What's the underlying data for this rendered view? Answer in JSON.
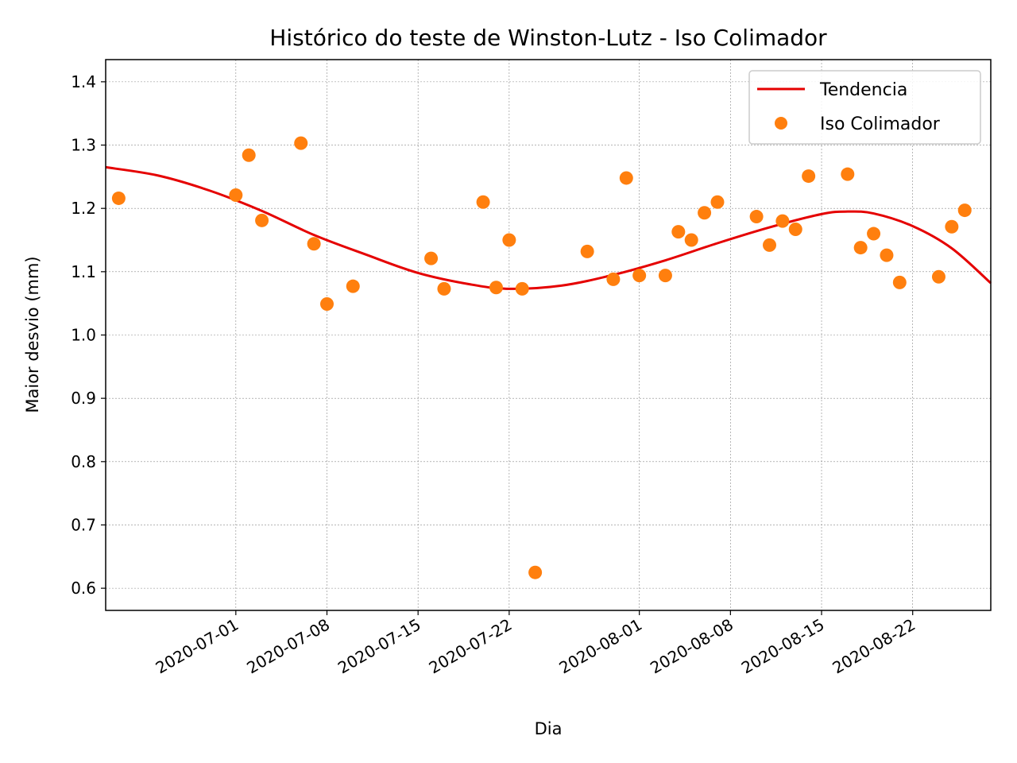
{
  "chart_data": {
    "type": "scatter",
    "title": "Histórico do teste de Winston-Lutz - Iso Colimador",
    "xlabel": "Dia",
    "ylabel": "Maior desvio (mm)",
    "x_axis_type": "date",
    "xlim": [
      "2020-06-21",
      "2020-08-28"
    ],
    "ylim": [
      0.565,
      1.435
    ],
    "x_ticks": [
      "2020-07-01",
      "2020-07-08",
      "2020-07-15",
      "2020-07-22",
      "2020-08-01",
      "2020-08-08",
      "2020-08-15",
      "2020-08-22"
    ],
    "y_ticks": [
      0.6,
      0.7,
      0.8,
      0.9,
      1.0,
      1.1,
      1.2,
      1.3,
      1.4
    ],
    "y_tick_labels": [
      "0.6",
      "0.7",
      "0.8",
      "0.9",
      "1.0",
      "1.1",
      "1.2",
      "1.3",
      "1.4"
    ],
    "grid": true,
    "legend_position": "top-right",
    "series": [
      {
        "name": "Tendencia",
        "kind": "line",
        "color": "#e50000",
        "x": [
          "2020-06-21",
          "2020-06-25",
          "2020-06-29",
          "2020-07-03",
          "2020-07-07",
          "2020-07-11",
          "2020-07-15",
          "2020-07-19",
          "2020-07-22",
          "2020-07-26",
          "2020-07-30",
          "2020-08-03",
          "2020-08-07",
          "2020-08-11",
          "2020-08-15",
          "2020-08-17",
          "2020-08-19",
          "2020-08-22",
          "2020-08-25",
          "2020-08-28"
        ],
        "y": [
          1.265,
          1.252,
          1.228,
          1.196,
          1.158,
          1.127,
          1.098,
          1.08,
          1.073,
          1.078,
          1.095,
          1.118,
          1.145,
          1.17,
          1.191,
          1.195,
          1.192,
          1.172,
          1.137,
          1.082
        ]
      },
      {
        "name": "Iso Colimador",
        "kind": "scatter",
        "color": "#ff7f0e",
        "x": [
          "2020-06-22",
          "2020-07-01",
          "2020-07-02",
          "2020-07-03",
          "2020-07-06",
          "2020-07-07",
          "2020-07-08",
          "2020-07-10",
          "2020-07-16",
          "2020-07-17",
          "2020-07-20",
          "2020-07-21",
          "2020-07-22",
          "2020-07-23",
          "2020-07-24",
          "2020-07-28",
          "2020-07-30",
          "2020-07-31",
          "2020-08-01",
          "2020-08-03",
          "2020-08-04",
          "2020-08-05",
          "2020-08-06",
          "2020-08-07",
          "2020-08-10",
          "2020-08-11",
          "2020-08-12",
          "2020-08-13",
          "2020-08-14",
          "2020-08-17",
          "2020-08-18",
          "2020-08-19",
          "2020-08-20",
          "2020-08-21",
          "2020-08-24",
          "2020-08-25",
          "2020-08-26"
        ],
        "y": [
          1.216,
          1.221,
          1.284,
          1.181,
          1.303,
          1.144,
          1.049,
          1.077,
          1.121,
          1.073,
          1.21,
          1.075,
          1.15,
          1.073,
          0.625,
          1.132,
          1.088,
          1.248,
          1.094,
          1.094,
          1.163,
          1.15,
          1.193,
          1.21,
          1.187,
          1.142,
          1.18,
          1.167,
          1.251,
          1.254,
          1.138,
          1.16,
          1.126,
          1.083,
          1.092,
          1.171,
          1.197
        ]
      }
    ]
  }
}
